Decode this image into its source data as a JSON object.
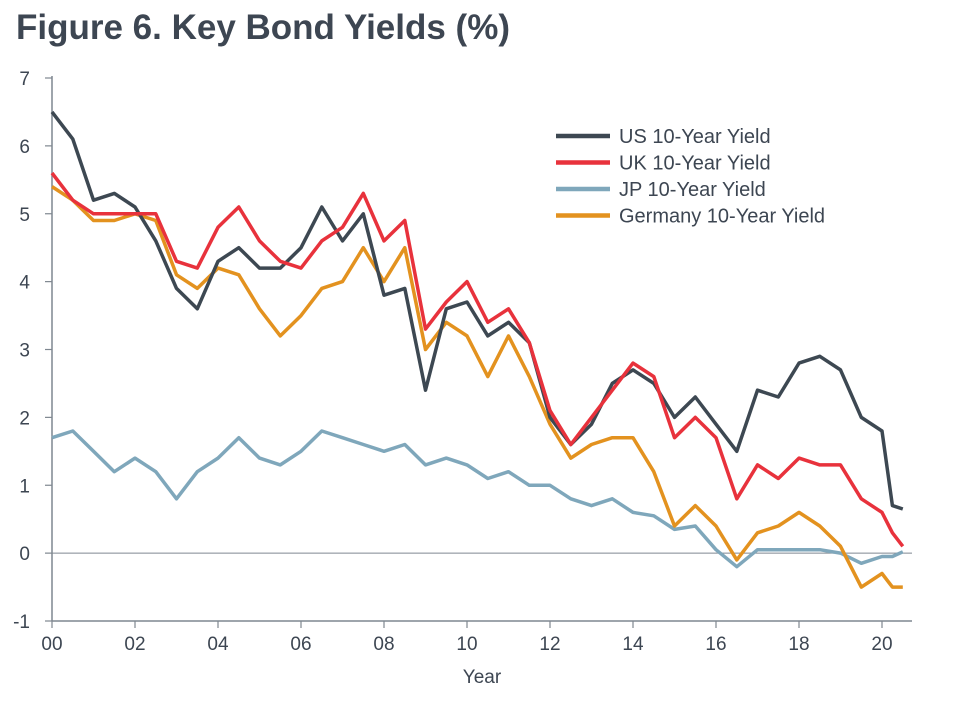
{
  "chart_data": {
    "type": "line",
    "title": "Figure 6. Key Bond Yields (%)",
    "xlabel": "Year",
    "ylabel": "",
    "xlim": [
      2000,
      2020.8
    ],
    "ylim": [
      -1,
      7
    ],
    "x_tick_labels": [
      "00",
      "02",
      "04",
      "06",
      "08",
      "10",
      "12",
      "14",
      "16",
      "18",
      "20"
    ],
    "x_ticks": [
      2000,
      2002,
      2004,
      2006,
      2008,
      2010,
      2012,
      2014,
      2016,
      2018,
      2020
    ],
    "y_ticks": [
      -1,
      0,
      1,
      2,
      3,
      4,
      5,
      6,
      7
    ],
    "legend_position": "top-right",
    "x": [
      2000,
      2000.5,
      2001,
      2001.5,
      2002,
      2002.5,
      2003,
      2003.5,
      2004,
      2004.5,
      2005,
      2005.5,
      2006,
      2006.5,
      2007,
      2007.5,
      2008,
      2008.5,
      2009,
      2009.5,
      2010,
      2010.5,
      2011,
      2011.5,
      2012,
      2012.5,
      2013,
      2013.5,
      2014,
      2014.5,
      2015,
      2015.5,
      2016,
      2016.5,
      2017,
      2017.5,
      2018,
      2018.5,
      2019,
      2019.5,
      2020,
      2020.25,
      2020.5
    ],
    "series": [
      {
        "name": "US 10-Year Yield",
        "color": "#3d4852",
        "values": [
          6.5,
          6.1,
          5.2,
          5.3,
          5.1,
          4.6,
          3.9,
          3.6,
          4.3,
          4.5,
          4.2,
          4.2,
          4.5,
          5.1,
          4.6,
          5.0,
          3.8,
          3.9,
          2.4,
          3.6,
          3.7,
          3.2,
          3.4,
          3.1,
          2.0,
          1.6,
          1.9,
          2.5,
          2.7,
          2.5,
          2.0,
          2.3,
          1.9,
          1.5,
          2.4,
          2.3,
          2.8,
          2.9,
          2.7,
          2.0,
          1.8,
          0.7,
          0.65
        ]
      },
      {
        "name": "UK 10-Year Yield",
        "color": "#e8323c",
        "values": [
          5.6,
          5.2,
          5.0,
          5.0,
          5.0,
          5.0,
          4.3,
          4.2,
          4.8,
          5.1,
          4.6,
          4.3,
          4.2,
          4.6,
          4.8,
          5.3,
          4.6,
          4.9,
          3.3,
          3.7,
          4.0,
          3.4,
          3.6,
          3.1,
          2.1,
          1.6,
          2.0,
          2.4,
          2.8,
          2.6,
          1.7,
          2.0,
          1.7,
          0.8,
          1.3,
          1.1,
          1.4,
          1.3,
          1.3,
          0.8,
          0.6,
          0.3,
          0.1
        ]
      },
      {
        "name": "JP 10-Year Yield",
        "color": "#7fa7bb",
        "values": [
          1.7,
          1.8,
          1.5,
          1.2,
          1.4,
          1.2,
          0.8,
          1.2,
          1.4,
          1.7,
          1.4,
          1.3,
          1.5,
          1.8,
          1.7,
          1.6,
          1.5,
          1.6,
          1.3,
          1.4,
          1.3,
          1.1,
          1.2,
          1.0,
          1.0,
          0.8,
          0.7,
          0.8,
          0.6,
          0.55,
          0.35,
          0.4,
          0.05,
          -0.2,
          0.05,
          0.05,
          0.05,
          0.05,
          0.0,
          -0.15,
          -0.05,
          -0.05,
          0.02
        ]
      },
      {
        "name": "Germany 10-Year Yield",
        "color": "#e3921f",
        "values": [
          5.4,
          5.2,
          4.9,
          4.9,
          5.0,
          4.9,
          4.1,
          3.9,
          4.2,
          4.1,
          3.6,
          3.2,
          3.5,
          3.9,
          4.0,
          4.5,
          4.0,
          4.5,
          3.0,
          3.4,
          3.2,
          2.6,
          3.2,
          2.6,
          1.9,
          1.4,
          1.6,
          1.7,
          1.7,
          1.2,
          0.4,
          0.7,
          0.4,
          -0.1,
          0.3,
          0.4,
          0.6,
          0.4,
          0.1,
          -0.5,
          -0.3,
          -0.5,
          -0.5
        ]
      }
    ]
  }
}
